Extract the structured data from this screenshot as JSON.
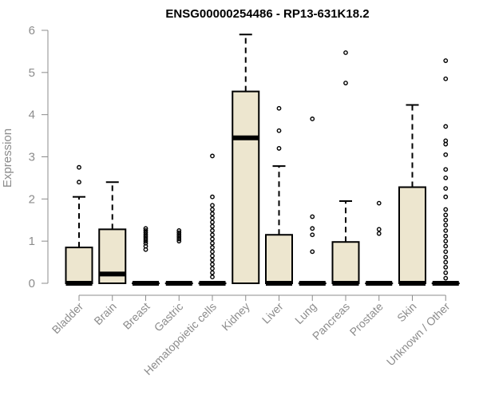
{
  "chart_data": {
    "type": "boxplot",
    "title": "ENSG00000254486 - RP13-631K18.2",
    "xlabel": "",
    "ylabel": "Expression",
    "ylim": [
      0,
      6
    ],
    "yticks": [
      "0",
      "1",
      "2",
      "3",
      "4",
      "5",
      "6"
    ],
    "grid": false,
    "box_fill": "#ede6cf",
    "stroke_color": "#000000",
    "axis_color": "#8c8c8c",
    "categories": [
      "Bladder",
      "Brain",
      "Breast",
      "Gastric",
      "Hematopoietic cells",
      "Kidney",
      "Liver",
      "Lung",
      "Pancreas",
      "Prostate",
      "Skin",
      "Unknown / Other"
    ],
    "boxes": [
      {
        "q1": 0,
        "median": 0,
        "q3": 0.85,
        "whisker_low": 0,
        "whisker_high": 2.05,
        "outliers": [
          2.4,
          2.75
        ]
      },
      {
        "q1": 0,
        "median": 0.22,
        "q3": 1.28,
        "whisker_low": 0,
        "whisker_high": 2.4,
        "outliers": []
      },
      {
        "q1": 0,
        "median": 0,
        "q3": 0,
        "whisker_low": 0,
        "whisker_high": 0,
        "outliers": [
          0.8,
          0.88,
          0.95,
          1.0,
          1.05,
          1.1,
          1.15,
          1.2,
          1.25,
          1.3
        ]
      },
      {
        "q1": 0,
        "median": 0,
        "q3": 0,
        "whisker_low": 0,
        "whisker_high": 0,
        "outliers": [
          1.0,
          1.05,
          1.1,
          1.15,
          1.2,
          1.25
        ]
      },
      {
        "q1": 0,
        "median": 0,
        "q3": 0,
        "whisker_low": 0,
        "whisker_high": 0,
        "outliers": [
          0.15,
          0.25,
          0.35,
          0.45,
          0.55,
          0.65,
          0.75,
          0.85,
          0.95,
          1.05,
          1.15,
          1.25,
          1.35,
          1.45,
          1.55,
          1.65,
          1.75,
          1.85,
          2.05,
          3.02
        ]
      },
      {
        "q1": 0,
        "median": 3.45,
        "q3": 4.55,
        "whisker_low": 0,
        "whisker_high": 5.9,
        "outliers": []
      },
      {
        "q1": 0,
        "median": 0,
        "q3": 1.15,
        "whisker_low": 0,
        "whisker_high": 2.78,
        "outliers": [
          3.2,
          3.62,
          4.15
        ]
      },
      {
        "q1": 0,
        "median": 0,
        "q3": 0,
        "whisker_low": 0,
        "whisker_high": 0,
        "outliers": [
          0.75,
          1.15,
          1.3,
          1.58,
          3.9
        ]
      },
      {
        "q1": 0,
        "median": 0,
        "q3": 0.98,
        "whisker_low": 0,
        "whisker_high": 1.95,
        "outliers": [
          4.75,
          5.47
        ]
      },
      {
        "q1": 0,
        "median": 0,
        "q3": 0,
        "whisker_low": 0,
        "whisker_high": 0,
        "outliers": [
          1.18,
          1.28,
          1.9
        ]
      },
      {
        "q1": 0,
        "median": 0,
        "q3": 2.28,
        "whisker_low": 0,
        "whisker_high": 4.23,
        "outliers": []
      },
      {
        "q1": 0,
        "median": 0,
        "q3": 0,
        "whisker_low": 0,
        "whisker_high": 0,
        "outliers": [
          0.12,
          0.25,
          0.38,
          0.5,
          0.62,
          0.75,
          0.88,
          1.0,
          1.12,
          1.25,
          1.38,
          1.5,
          1.62,
          1.75,
          2.05,
          2.25,
          2.5,
          2.7,
          3.05,
          3.3,
          3.38,
          3.72,
          4.85,
          5.28
        ]
      }
    ]
  }
}
